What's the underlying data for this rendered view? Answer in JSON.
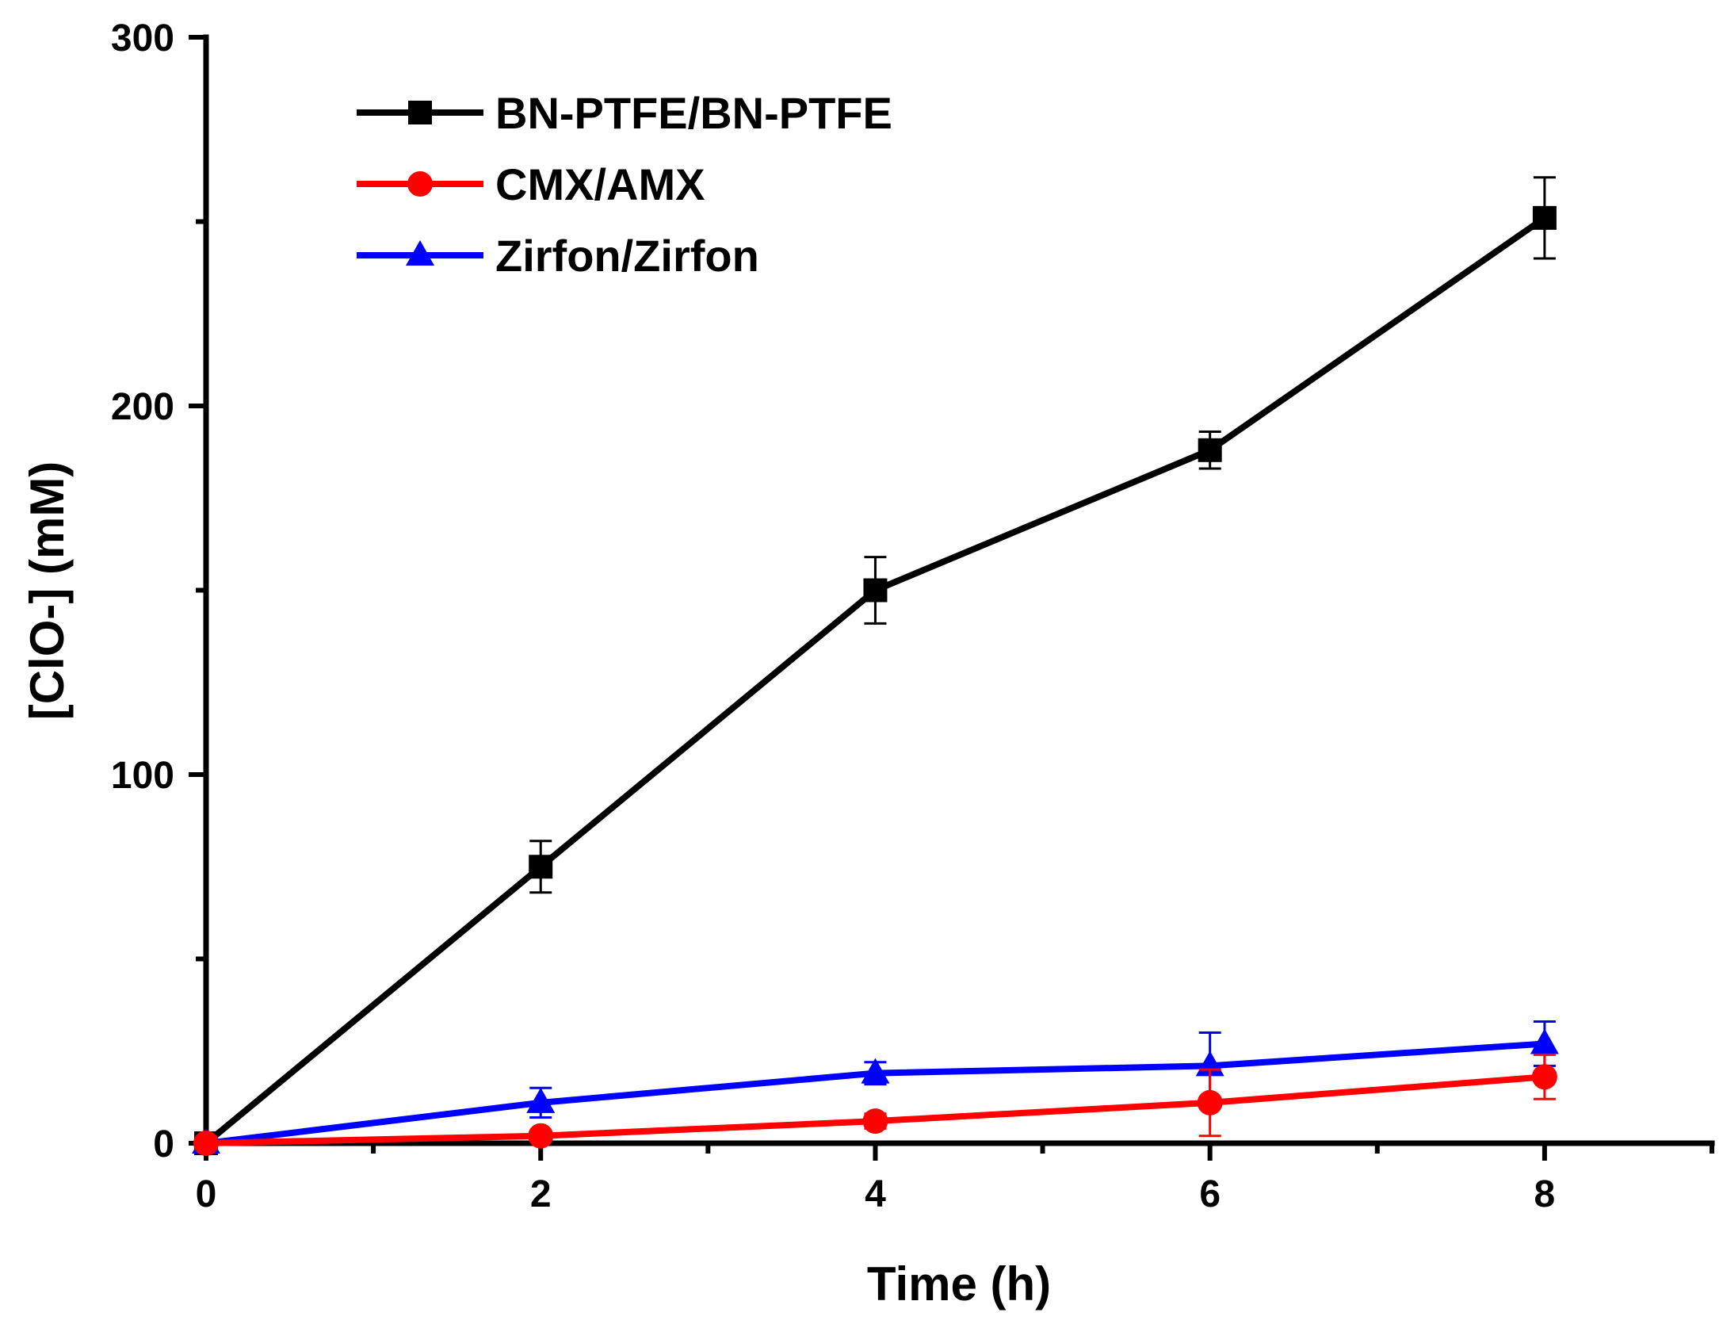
{
  "chart_data": {
    "type": "line",
    "title": "",
    "xlabel": "Time (h)",
    "ylabel": "[ClO-] (mM)",
    "xlim": [
      0,
      9
    ],
    "ylim": [
      0,
      300
    ],
    "x_ticks": [
      0,
      2,
      4,
      6,
      8
    ],
    "x_minor_ticks": [
      1,
      3,
      5,
      7,
      9
    ],
    "y_ticks": [
      0,
      100,
      200,
      300
    ],
    "y_minor_ticks": [
      50,
      150,
      250
    ],
    "grid": false,
    "legend_position": "top-left",
    "series": [
      {
        "name": "BN-PTFE/BN-PTFE",
        "color": "#000000",
        "marker": "square",
        "x": [
          0,
          2,
          4,
          6,
          8
        ],
        "y": [
          0,
          75,
          150,
          188,
          251
        ],
        "error": [
          0,
          7,
          9,
          5,
          11
        ]
      },
      {
        "name": "CMX/AMX",
        "color": "#ff0000",
        "marker": "circle",
        "x": [
          0,
          2,
          4,
          6,
          8
        ],
        "y": [
          0,
          2,
          6,
          11,
          18
        ],
        "error": [
          0,
          1,
          2,
          9,
          6
        ]
      },
      {
        "name": "Zirfon/Zirfon",
        "color": "#0000ff",
        "marker": "triangle",
        "x": [
          0,
          2,
          4,
          6,
          8
        ],
        "y": [
          0,
          11,
          19,
          21,
          27
        ],
        "error": [
          0,
          4,
          3,
          9,
          6
        ]
      }
    ]
  }
}
